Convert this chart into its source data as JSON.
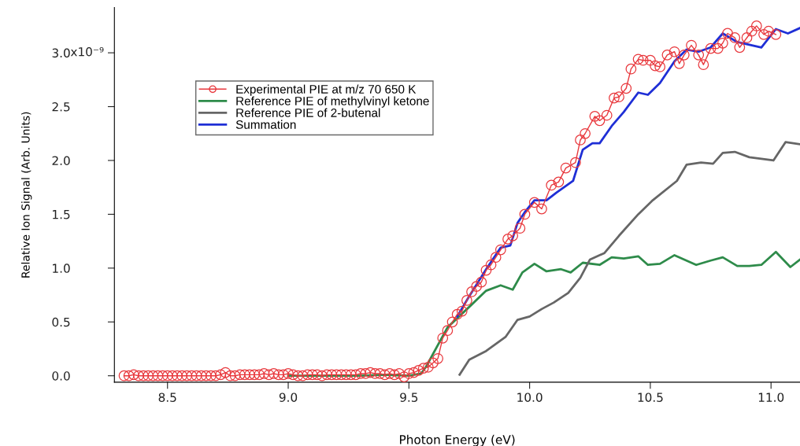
{
  "chart_data": {
    "type": "line",
    "xlabel": "Photon Energy (eV)",
    "ylabel": "Relative Ion Signal (Arb. Units)",
    "xlim": [
      8.28,
      11.12
    ],
    "ylim": [
      -0.06,
      3.42
    ],
    "xticks": [
      {
        "value": 8.5,
        "label": "8.5"
      },
      {
        "value": 9.0,
        "label": "9.0"
      },
      {
        "value": 9.5,
        "label": "9.5"
      },
      {
        "value": 10.0,
        "label": "10.0"
      },
      {
        "value": 10.5,
        "label": "10.5"
      },
      {
        "value": 11.0,
        "label": "11.0"
      }
    ],
    "yticks": [
      {
        "value": 0,
        "label": "0.0"
      },
      {
        "value": 0.5,
        "label": "0.5"
      },
      {
        "value": 1.0,
        "label": "1.0"
      },
      {
        "value": 1.5,
        "label": "1.5"
      },
      {
        "value": 2.0,
        "label": "2.0"
      },
      {
        "value": 2.5,
        "label": "2.5"
      },
      {
        "value": 3.0,
        "label": "3.0"
      }
    ],
    "annotations": [
      "x10⁻⁹"
    ],
    "grid": false,
    "legend": "top left",
    "series": [
      {
        "name": "Experimental PIE at m/z 70 650 K",
        "color": "#e8383d",
        "marker": "circle",
        "x": [
          8.32,
          8.34,
          8.36,
          8.38,
          8.4,
          8.42,
          8.44,
          8.46,
          8.48,
          8.5,
          8.52,
          8.54,
          8.56,
          8.58,
          8.6,
          8.62,
          8.64,
          8.66,
          8.68,
          8.7,
          8.72,
          8.74,
          8.76,
          8.78,
          8.8,
          8.82,
          8.84,
          8.86,
          8.88,
          8.9,
          8.92,
          8.94,
          8.96,
          8.98,
          9.0,
          9.02,
          9.04,
          9.06,
          9.08,
          9.1,
          9.12,
          9.14,
          9.16,
          9.18,
          9.2,
          9.22,
          9.24,
          9.26,
          9.28,
          9.3,
          9.32,
          9.34,
          9.36,
          9.38,
          9.4,
          9.42,
          9.44,
          9.46,
          9.48,
          9.5,
          9.52,
          9.54,
          9.56,
          9.58,
          9.6,
          9.62,
          9.64,
          9.66,
          9.68,
          9.7,
          9.72,
          9.74,
          9.76,
          9.78,
          9.8,
          9.82,
          9.84,
          9.86,
          9.88,
          9.91,
          9.93,
          9.96,
          9.98,
          10.02,
          10.05,
          10.09,
          10.12,
          10.15,
          10.19,
          10.21,
          10.23,
          10.27,
          10.29,
          10.32,
          10.35,
          10.37,
          10.4,
          10.42,
          10.45,
          10.47,
          10.5,
          10.52,
          10.54,
          10.57,
          10.6,
          10.62,
          10.64,
          10.67,
          10.7,
          10.72,
          10.75,
          10.78,
          10.8,
          10.82,
          10.85,
          10.87,
          10.9,
          10.92,
          10.94,
          10.97,
          10.99,
          11.02
        ],
        "values": [
          0.0,
          0.0,
          0.01,
          0.0,
          0.0,
          0.0,
          0.0,
          0.0,
          0.0,
          0.0,
          0.0,
          0.0,
          0.0,
          0.0,
          0.0,
          0.0,
          0.0,
          0.0,
          0.0,
          0.0,
          0.01,
          0.03,
          0.0,
          0.0,
          0.01,
          0.01,
          0.01,
          0.01,
          0.01,
          0.02,
          0.01,
          0.02,
          0.01,
          0.01,
          0.02,
          0.01,
          0.0,
          0.0,
          0.01,
          0.01,
          0.01,
          0.0,
          0.01,
          0.01,
          0.01,
          0.01,
          0.01,
          0.01,
          0.01,
          0.02,
          0.02,
          0.03,
          0.02,
          0.02,
          0.01,
          0.02,
          0.01,
          0.02,
          -0.01,
          0.02,
          0.03,
          0.05,
          0.07,
          0.08,
          0.12,
          0.16,
          0.35,
          0.42,
          0.5,
          0.57,
          0.6,
          0.7,
          0.78,
          0.83,
          0.87,
          0.98,
          1.03,
          1.1,
          1.17,
          1.27,
          1.3,
          1.37,
          1.5,
          1.61,
          1.55,
          1.77,
          1.8,
          1.93,
          1.98,
          2.19,
          2.25,
          2.41,
          2.37,
          2.42,
          2.58,
          2.59,
          2.67,
          2.85,
          2.94,
          2.93,
          2.93,
          2.88,
          2.87,
          2.98,
          3.01,
          2.9,
          2.98,
          3.07,
          2.98,
          2.89,
          3.04,
          3.04,
          3.09,
          3.18,
          3.14,
          3.05,
          3.14,
          3.2,
          3.25,
          3.17,
          3.2,
          3.17
        ]
      },
      {
        "name": "Reference PIE of methylvinyl ketone",
        "color": "#2e8b4a",
        "x": [
          9.0,
          9.1,
          9.2,
          9.3,
          9.4,
          9.5,
          9.55,
          9.57,
          9.66,
          9.75,
          9.82,
          9.88,
          9.93,
          9.97,
          10.02,
          10.07,
          10.13,
          10.17,
          10.22,
          10.29,
          10.34,
          10.39,
          10.45,
          10.49,
          10.54,
          10.6,
          10.69,
          10.75,
          10.8,
          10.86,
          10.91,
          10.96,
          11.02,
          11.08,
          11.12
        ],
        "values": [
          0.0,
          0.0,
          0.0,
          0.0,
          0.01,
          0.0,
          0.02,
          0.08,
          0.45,
          0.64,
          0.79,
          0.84,
          0.8,
          0.96,
          1.04,
          0.97,
          0.99,
          0.96,
          1.05,
          1.03,
          1.1,
          1.09,
          1.11,
          1.03,
          1.04,
          1.12,
          1.03,
          1.07,
          1.1,
          1.02,
          1.02,
          1.03,
          1.15,
          1.01,
          1.08
        ]
      },
      {
        "name": "Reference PIE of 2-butenal",
        "color": "#666666",
        "x": [
          9.71,
          9.75,
          9.82,
          9.9,
          9.95,
          10.0,
          10.05,
          10.1,
          10.16,
          10.21,
          10.25,
          10.31,
          10.37,
          10.45,
          10.51,
          10.61,
          10.65,
          10.71,
          10.76,
          10.8,
          10.85,
          10.91,
          11.01,
          11.06,
          11.12
        ],
        "values": [
          0.01,
          0.15,
          0.23,
          0.36,
          0.52,
          0.55,
          0.62,
          0.68,
          0.77,
          0.91,
          1.08,
          1.14,
          1.3,
          1.5,
          1.63,
          1.81,
          1.96,
          1.98,
          1.97,
          2.07,
          2.08,
          2.03,
          2.0,
          2.17,
          2.15
        ]
      },
      {
        "name": "Summation",
        "color": "#1f2fd6",
        "x": [
          9.7,
          9.75,
          9.82,
          9.88,
          9.92,
          9.95,
          9.98,
          10.02,
          10.07,
          10.11,
          10.18,
          10.22,
          10.26,
          10.29,
          10.34,
          10.39,
          10.45,
          10.49,
          10.54,
          10.6,
          10.65,
          10.7,
          10.75,
          10.8,
          10.86,
          10.96,
          11.02,
          11.07,
          11.12
        ],
        "values": [
          0.55,
          0.74,
          0.99,
          1.19,
          1.21,
          1.42,
          1.52,
          1.63,
          1.63,
          1.7,
          1.81,
          2.1,
          2.16,
          2.16,
          2.32,
          2.45,
          2.63,
          2.61,
          2.72,
          2.92,
          3.03,
          3.01,
          3.05,
          3.18,
          3.1,
          3.05,
          3.22,
          3.18,
          3.23
        ]
      }
    ]
  }
}
